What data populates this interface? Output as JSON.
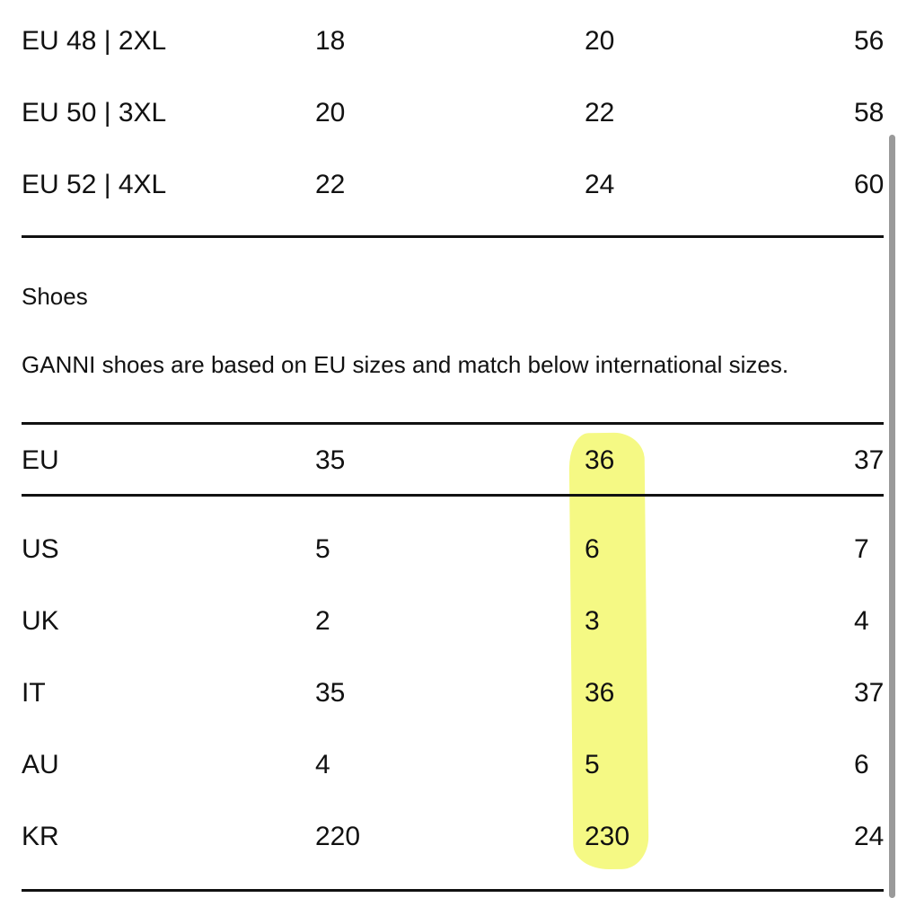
{
  "clothing_rows": [
    {
      "cells": [
        "EU 48 | 2XL",
        "18",
        "20",
        "56"
      ]
    },
    {
      "cells": [
        "EU 50 | 3XL",
        "20",
        "22",
        "58"
      ]
    },
    {
      "cells": [
        "EU 52 | 4XL",
        "22",
        "24",
        "60"
      ]
    }
  ],
  "shoes": {
    "title": "Shoes",
    "description": "GANNI shoes are based on EU sizes and match below international sizes.",
    "header": [
      "EU",
      "35",
      "36",
      "37"
    ],
    "rows": [
      {
        "cells": [
          "US",
          "5",
          "6",
          "7"
        ]
      },
      {
        "cells": [
          "UK",
          "2",
          "3",
          "4"
        ]
      },
      {
        "cells": [
          "IT",
          "35",
          "36",
          "37"
        ]
      },
      {
        "cells": [
          "AU",
          "4",
          "5",
          "6"
        ]
      },
      {
        "cells": [
          "KR",
          "220",
          "230",
          "24"
        ]
      }
    ]
  },
  "colors": {
    "highlight": "#f4f97a",
    "text": "#111111"
  }
}
